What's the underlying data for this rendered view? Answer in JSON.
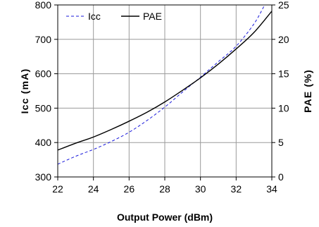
{
  "chart_data": {
    "type": "line",
    "title": "",
    "xlabel": "Output Power (dBm)",
    "ylabel_left": "Icc (mA)",
    "ylabel_right": "PAE (%)",
    "xlim": [
      22,
      34
    ],
    "ylim_left": [
      300,
      800
    ],
    "ylim_right": [
      0,
      25
    ],
    "x_ticks": [
      "22",
      "24",
      "26",
      "28",
      "30",
      "32",
      "34"
    ],
    "y_left_ticks": [
      "300",
      "400",
      "500",
      "600",
      "700",
      "800"
    ],
    "y_right_ticks": [
      "0",
      "5",
      "10",
      "15",
      "20",
      "25"
    ],
    "grid": true,
    "legend_position": "top-left",
    "series": [
      {
        "name": "Icc",
        "axis": "left",
        "color": "#1a1adb",
        "style": "dashed",
        "x": [
          22,
          23,
          24,
          25,
          26,
          27,
          28,
          29,
          30,
          31,
          32,
          33,
          33.6
        ],
        "y": [
          337,
          360,
          380,
          403,
          430,
          464,
          503,
          547,
          590,
          635,
          680,
          745,
          800
        ]
      },
      {
        "name": "PAE",
        "axis": "right",
        "color": "#000000",
        "style": "solid",
        "x": [
          22,
          23,
          24,
          25,
          26,
          27,
          28,
          29,
          30,
          31,
          32,
          33,
          34
        ],
        "y": [
          3.9,
          4.9,
          5.8,
          6.9,
          8.1,
          9.4,
          10.9,
          12.6,
          14.4,
          16.4,
          18.6,
          21.0,
          24.1
        ]
      }
    ]
  }
}
